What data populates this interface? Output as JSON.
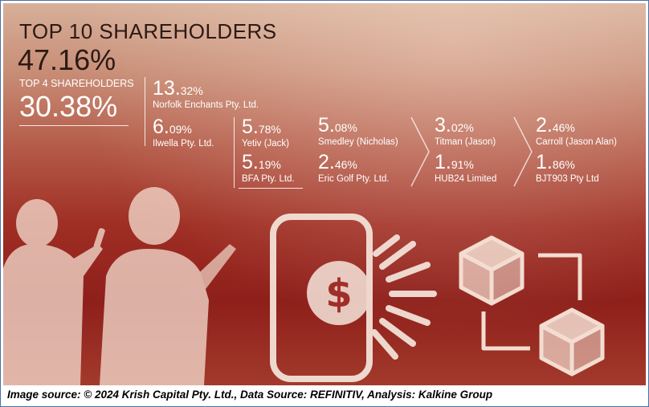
{
  "title": "TOP 10 SHAREHOLDERS",
  "top10_percent": "47.16%",
  "top4_label": "TOP 4 SHAREHOLDERS",
  "top4_percent": "30.38%",
  "shareholders": [
    {
      "int": "13.",
      "dec": "32%",
      "name": "Norfolk Enchants Pty. Ltd."
    },
    {
      "int": "6.",
      "dec": "09%",
      "name": "Ilwella Pty. Ltd."
    },
    {
      "int": "5.",
      "dec": "78%",
      "name": "Yetiv (Jack)"
    },
    {
      "int": "5.",
      "dec": "19%",
      "name": "BFA Pty. Ltd."
    },
    {
      "int": "5.",
      "dec": "08%",
      "name": "Smedley (Nicholas)"
    },
    {
      "int": "2.",
      "dec": "46%",
      "name": "Eric Golf Pty. Ltd."
    },
    {
      "int": "3.",
      "dec": "02%",
      "name": "Titman (Jason)"
    },
    {
      "int": "1.",
      "dec": "91%",
      "name": "HUB24 Limited"
    },
    {
      "int": "2.",
      "dec": "46%",
      "name": "Carroll (Jason Alan)"
    },
    {
      "int": "1.",
      "dec": "86%",
      "name": "BJT903 Pty Ltd"
    }
  ],
  "caption": "Image source: © 2024 Krish Capital Pty. Ltd., Data Source: REFINITIV, Analysis: Kalkine Group",
  "colors": {
    "background_top": "#d7b09a",
    "background_bottom": "#8e1f1a",
    "text_dark": "#2b1a14",
    "text_light": "#ffffff"
  },
  "icons": [
    "people-silhouette-icon",
    "smartphone-dollar-icon",
    "blockchain-cubes-icon",
    "chevron-right-icon"
  ]
}
